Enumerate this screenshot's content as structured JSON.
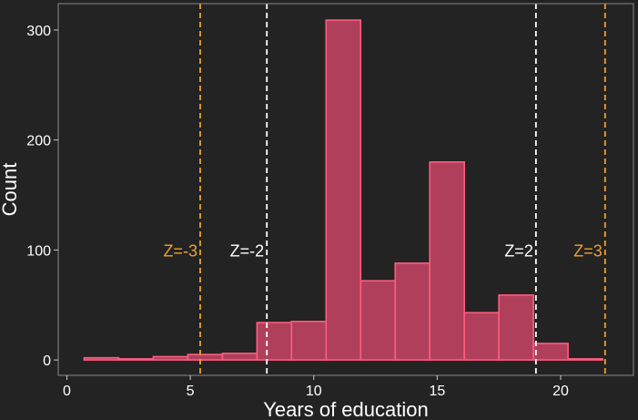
{
  "chart_data": {
    "type": "histogram",
    "title": "",
    "xlabel": "Years of education",
    "ylabel": "Count",
    "xlim": [
      -0.35,
      22.95
    ],
    "ylim": [
      -14,
      324
    ],
    "x_ticks": [
      0,
      5,
      10,
      15,
      20
    ],
    "y_ticks": [
      0,
      100,
      200,
      300
    ],
    "bins": [
      {
        "start": 0.7,
        "end": 2.1,
        "count": 2
      },
      {
        "start": 2.1,
        "end": 3.5,
        "count": 1
      },
      {
        "start": 3.5,
        "end": 4.9,
        "count": 3
      },
      {
        "start": 4.9,
        "end": 6.3,
        "count": 5
      },
      {
        "start": 6.3,
        "end": 7.7,
        "count": 6
      },
      {
        "start": 7.7,
        "end": 9.1,
        "count": 34
      },
      {
        "start": 9.1,
        "end": 10.5,
        "count": 35
      },
      {
        "start": 10.5,
        "end": 11.9,
        "count": 309
      },
      {
        "start": 11.9,
        "end": 13.3,
        "count": 72
      },
      {
        "start": 13.3,
        "end": 14.7,
        "count": 88
      },
      {
        "start": 14.7,
        "end": 16.1,
        "count": 180
      },
      {
        "start": 16.1,
        "end": 17.5,
        "count": 43
      },
      {
        "start": 17.5,
        "end": 18.9,
        "count": 59
      },
      {
        "start": 18.9,
        "end": 20.3,
        "count": 15
      },
      {
        "start": 20.3,
        "end": 21.7,
        "count": 1
      }
    ],
    "reference_lines": [
      {
        "label": "Z=-3",
        "x": 5.4,
        "color": "#f0a030"
      },
      {
        "label": "Z=-2",
        "x": 8.1,
        "color": "#ffffff"
      },
      {
        "label": "Z=2",
        "x": 19.0,
        "color": "#ffffff"
      },
      {
        "label": "Z=3",
        "x": 21.8,
        "color": "#f0a030"
      }
    ],
    "reference_label_y": 100,
    "bar_fill": "#b03f5c",
    "bar_stroke": "#ff5c7e",
    "background": "#232323",
    "panel_border": "#8a8a8a"
  }
}
